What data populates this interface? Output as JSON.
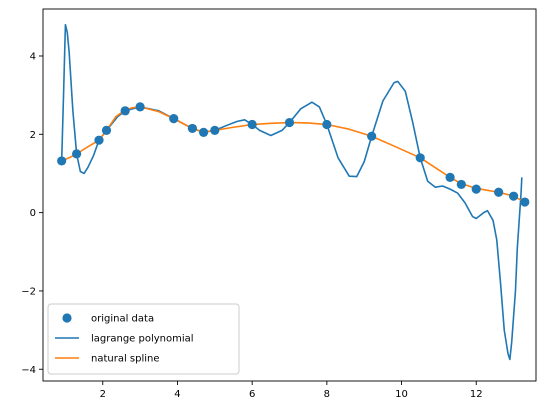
{
  "chart_data": {
    "type": "line",
    "title": "",
    "xlabel": "",
    "ylabel": "",
    "xlim": [
      0.4,
      13.6
    ],
    "ylim": [
      -4.3,
      5.2
    ],
    "grid": false,
    "legend_position": "lower-left",
    "x_ticks": [
      2,
      4,
      6,
      8,
      10,
      12
    ],
    "y_ticks": [
      -4,
      -2,
      0,
      2,
      4
    ],
    "x_tick_labels": [
      "2",
      "4",
      "6",
      "8",
      "10",
      "12"
    ],
    "y_tick_labels": [
      "−4",
      "−2",
      "0",
      "2",
      "4"
    ],
    "colors": {
      "blue": "#1f77b4",
      "orange": "#ff7f0e",
      "legend_border": "#cccccc"
    },
    "series": [
      {
        "name": "original data",
        "kind": "scatter",
        "color": "#1f77b4",
        "points": [
          [
            0.9,
            1.32
          ],
          [
            1.3,
            1.5
          ],
          [
            1.9,
            1.85
          ],
          [
            2.1,
            2.1
          ],
          [
            2.6,
            2.6
          ],
          [
            3.0,
            2.7
          ],
          [
            3.9,
            2.4
          ],
          [
            4.4,
            2.15
          ],
          [
            4.7,
            2.05
          ],
          [
            5.0,
            2.1
          ],
          [
            6.0,
            2.25
          ],
          [
            7.0,
            2.3
          ],
          [
            8.0,
            2.25
          ],
          [
            9.2,
            1.95
          ],
          [
            10.5,
            1.4
          ],
          [
            11.3,
            0.9
          ],
          [
            11.6,
            0.72
          ],
          [
            12.0,
            0.6
          ],
          [
            12.6,
            0.52
          ],
          [
            13.0,
            0.42
          ],
          [
            13.3,
            0.27
          ]
        ]
      },
      {
        "name": "lagrange polynomial",
        "kind": "line",
        "color": "#1f77b4",
        "points": [
          [
            0.9,
            1.32
          ],
          [
            0.95,
            3.0
          ],
          [
            1.0,
            4.8
          ],
          [
            1.05,
            4.6
          ],
          [
            1.1,
            4.1
          ],
          [
            1.2,
            2.6
          ],
          [
            1.3,
            1.5
          ],
          [
            1.4,
            1.05
          ],
          [
            1.5,
            1.0
          ],
          [
            1.6,
            1.15
          ],
          [
            1.75,
            1.45
          ],
          [
            1.9,
            1.85
          ],
          [
            2.1,
            2.1
          ],
          [
            2.4,
            2.45
          ],
          [
            2.6,
            2.6
          ],
          [
            3.0,
            2.7
          ],
          [
            3.5,
            2.6
          ],
          [
            3.9,
            2.4
          ],
          [
            4.4,
            2.15
          ],
          [
            4.7,
            2.05
          ],
          [
            5.0,
            2.1
          ],
          [
            5.3,
            2.22
          ],
          [
            5.6,
            2.33
          ],
          [
            5.8,
            2.37
          ],
          [
            6.0,
            2.25
          ],
          [
            6.2,
            2.1
          ],
          [
            6.5,
            1.97
          ],
          [
            6.8,
            2.1
          ],
          [
            7.0,
            2.3
          ],
          [
            7.3,
            2.65
          ],
          [
            7.6,
            2.82
          ],
          [
            7.8,
            2.7
          ],
          [
            8.0,
            2.25
          ],
          [
            8.3,
            1.4
          ],
          [
            8.6,
            0.93
          ],
          [
            8.8,
            0.92
          ],
          [
            9.0,
            1.3
          ],
          [
            9.2,
            1.95
          ],
          [
            9.5,
            2.85
          ],
          [
            9.8,
            3.32
          ],
          [
            9.9,
            3.35
          ],
          [
            10.1,
            3.1
          ],
          [
            10.3,
            2.3
          ],
          [
            10.5,
            1.4
          ],
          [
            10.7,
            0.8
          ],
          [
            10.9,
            0.65
          ],
          [
            11.1,
            0.68
          ],
          [
            11.3,
            0.6
          ],
          [
            11.5,
            0.5
          ],
          [
            11.7,
            0.25
          ],
          [
            11.9,
            -0.1
          ],
          [
            12.0,
            -0.15
          ],
          [
            12.2,
            0.0
          ],
          [
            12.3,
            0.05
          ],
          [
            12.45,
            -0.2
          ],
          [
            12.55,
            -0.7
          ],
          [
            12.65,
            -1.8
          ],
          [
            12.75,
            -3.0
          ],
          [
            12.85,
            -3.6
          ],
          [
            12.9,
            -3.75
          ],
          [
            12.95,
            -3.3
          ],
          [
            13.05,
            -2.0
          ],
          [
            13.1,
            -0.9
          ],
          [
            13.15,
            -0.2
          ],
          [
            13.2,
            0.5
          ],
          [
            13.22,
            0.9
          ]
        ]
      },
      {
        "name": "natural spline",
        "kind": "line",
        "color": "#ff7f0e",
        "points": [
          [
            0.9,
            1.32
          ],
          [
            1.1,
            1.4
          ],
          [
            1.3,
            1.5
          ],
          [
            1.6,
            1.68
          ],
          [
            1.9,
            1.85
          ],
          [
            2.1,
            2.1
          ],
          [
            2.35,
            2.45
          ],
          [
            2.6,
            2.62
          ],
          [
            2.8,
            2.68
          ],
          [
            3.0,
            2.7
          ],
          [
            3.5,
            2.58
          ],
          [
            3.9,
            2.4
          ],
          [
            4.2,
            2.25
          ],
          [
            4.4,
            2.15
          ],
          [
            4.7,
            2.06
          ],
          [
            5.0,
            2.1
          ],
          [
            5.5,
            2.18
          ],
          [
            6.0,
            2.25
          ],
          [
            6.5,
            2.28
          ],
          [
            7.0,
            2.3
          ],
          [
            7.5,
            2.29
          ],
          [
            8.0,
            2.25
          ],
          [
            8.6,
            2.13
          ],
          [
            9.2,
            1.95
          ],
          [
            9.8,
            1.7
          ],
          [
            10.5,
            1.4
          ],
          [
            10.9,
            1.15
          ],
          [
            11.3,
            0.9
          ],
          [
            11.6,
            0.74
          ],
          [
            12.0,
            0.62
          ],
          [
            12.3,
            0.57
          ],
          [
            12.6,
            0.52
          ],
          [
            13.0,
            0.42
          ],
          [
            13.3,
            0.27
          ]
        ]
      }
    ]
  }
}
